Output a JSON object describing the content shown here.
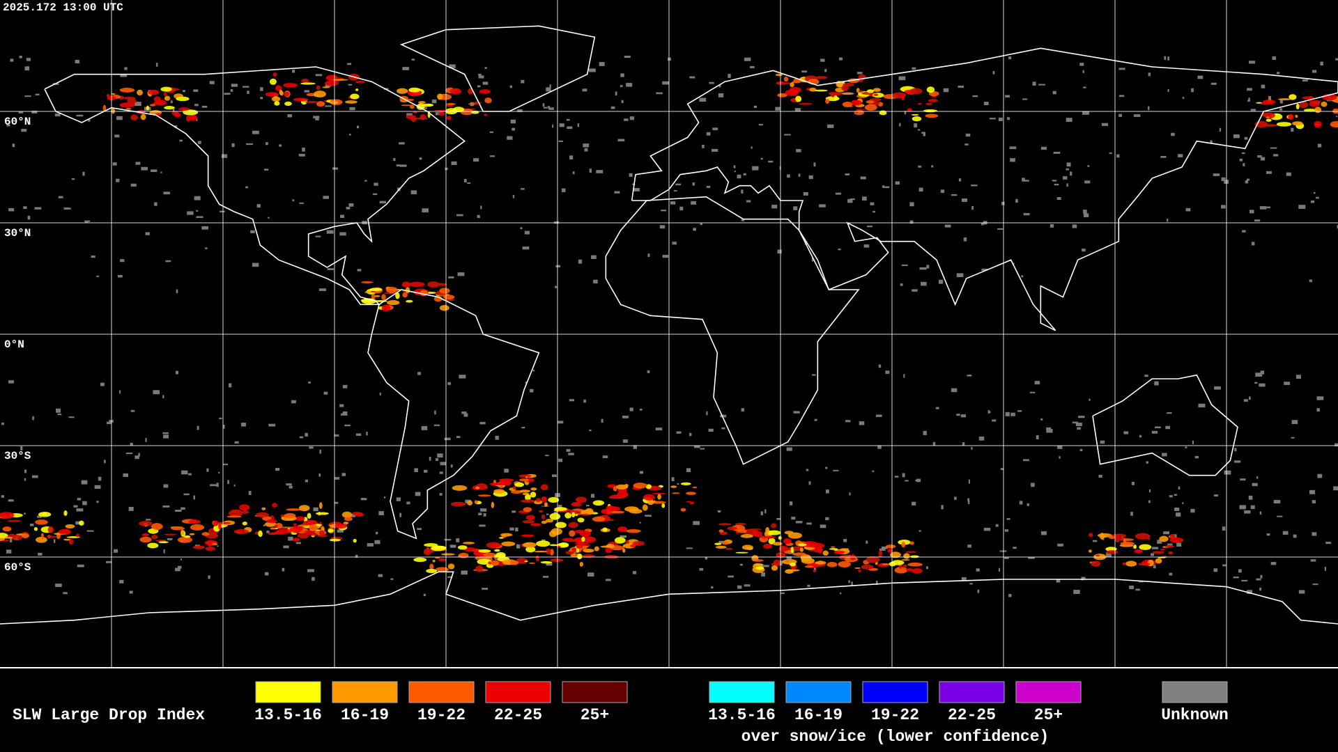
{
  "header": {
    "timestamp": "2025.172 13:00 UTC"
  },
  "map": {
    "latitude_labels": [
      "60°N",
      "30°N",
      "0°N",
      "30°S",
      "60°S"
    ]
  },
  "legend": {
    "title": "SLW Large Drop Index",
    "groups": [
      {
        "items": [
          {
            "label": "13.5-16",
            "color": "#ffff00"
          },
          {
            "label": "16-19",
            "color": "#ff9900"
          },
          {
            "label": "19-22",
            "color": "#ff5a00"
          },
          {
            "label": "22-25",
            "color": "#ee0000"
          },
          {
            "label": "25+",
            "color": "#660000"
          }
        ]
      },
      {
        "items": [
          {
            "label": "13.5-16",
            "color": "#00ffff"
          },
          {
            "label": "16-19",
            "color": "#0088ff"
          },
          {
            "label": "19-22",
            "color": "#0000ff"
          },
          {
            "label": "22-25",
            "color": "#7a00e6"
          },
          {
            "label": "25+",
            "color": "#cc00cc"
          }
        ],
        "caption": "over snow/ice (lower confidence)"
      },
      {
        "items": [
          {
            "label": "Unknown",
            "color": "#808080"
          }
        ]
      }
    ]
  }
}
